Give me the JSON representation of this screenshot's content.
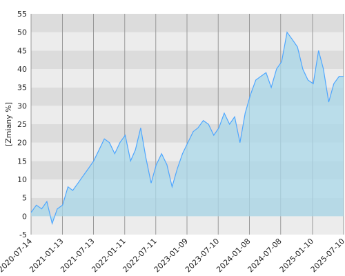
{
  "chart_data": {
    "type": "area",
    "y_label": "[Zmiany %]",
    "x": [
      "2020-07-14",
      "2020-08-14",
      "2020-09-14",
      "2020-10-14",
      "2020-11-14",
      "2020-12-14",
      "2021-01-14",
      "2021-02-14",
      "2021-03-14",
      "2021-04-14",
      "2021-05-14",
      "2021-06-14",
      "2021-07-14",
      "2021-08-14",
      "2021-09-14",
      "2021-10-14",
      "2021-11-14",
      "2021-12-14",
      "2022-01-14",
      "2022-02-14",
      "2022-03-14",
      "2022-04-14",
      "2022-05-14",
      "2022-06-14",
      "2022-07-14",
      "2022-08-14",
      "2022-09-14",
      "2022-10-14",
      "2022-11-14",
      "2022-12-14",
      "2023-01-14",
      "2023-02-14",
      "2023-03-14",
      "2023-04-14",
      "2023-05-14",
      "2023-06-14",
      "2023-07-14",
      "2023-08-14",
      "2023-09-14",
      "2023-10-14",
      "2023-11-14",
      "2023-12-14",
      "2024-01-14",
      "2024-02-14",
      "2024-03-14",
      "2024-04-14",
      "2024-05-14",
      "2024-06-14",
      "2024-07-14",
      "2024-08-14",
      "2024-09-14",
      "2024-10-14",
      "2024-11-14",
      "2024-12-14",
      "2025-01-14",
      "2025-02-14",
      "2025-03-14",
      "2025-04-14",
      "2025-05-14",
      "2025-06-14",
      "2025-07-10"
    ],
    "series": [
      {
        "color": "#4da6ff",
        "fill": "#a9d8ea",
        "values": [
          1,
          3,
          2,
          4,
          -2,
          2,
          3,
          8,
          7,
          9,
          11,
          13,
          15,
          18,
          21,
          20,
          17,
          20,
          22,
          15,
          18,
          24,
          16,
          9,
          14,
          17,
          14,
          8,
          13,
          17,
          20,
          23,
          24,
          26,
          25,
          22,
          24,
          28,
          25,
          27,
          20,
          28,
          33,
          37,
          38,
          39,
          35,
          40,
          42,
          50,
          48,
          46,
          40,
          37,
          36,
          45,
          40,
          31,
          36,
          38,
          38
        ]
      }
    ],
    "xlim": [
      "2020-07-14",
      "2025-07-10"
    ],
    "xticks": [
      "2020-07-14",
      "2021-01-13",
      "2021-07-13",
      "2022-01-11",
      "2022-07-11",
      "2023-01-09",
      "2023-07-10",
      "2024-01-08",
      "2024-07-08",
      "2025-01-10",
      "2025-07-10"
    ],
    "ylim": [
      -5,
      55
    ],
    "yticks": [
      -5,
      0,
      5,
      10,
      15,
      20,
      25,
      30,
      35,
      40,
      45,
      50,
      55
    ],
    "bands": [
      "#dcdcdc",
      "#ececec"
    ],
    "grid_color": "#999999"
  }
}
